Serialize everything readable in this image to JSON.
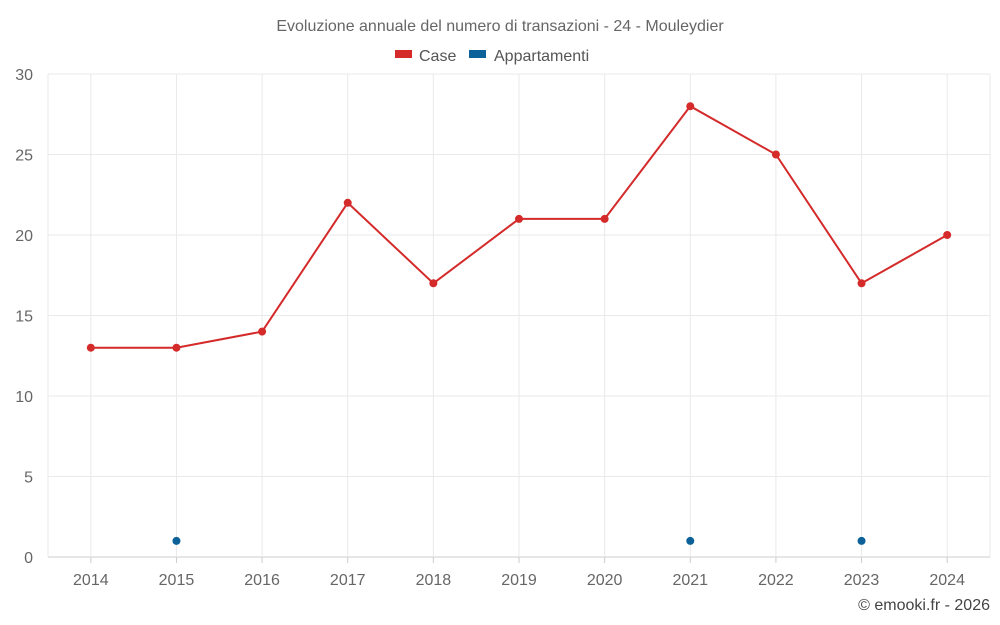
{
  "chart_data": {
    "type": "line",
    "title": "Evoluzione annuale del numero di transazioni - 24 - Mouleydier",
    "xlabel": "",
    "ylabel": "",
    "categories": [
      "2014",
      "2015",
      "2016",
      "2017",
      "2018",
      "2019",
      "2020",
      "2021",
      "2022",
      "2023",
      "2024"
    ],
    "ylim": [
      0,
      30
    ],
    "yticks": [
      0,
      5,
      10,
      15,
      20,
      25,
      30
    ],
    "grid": true,
    "legend_position": "top-center",
    "series": [
      {
        "name": "Case",
        "color": "#d42a2a",
        "values": [
          13,
          13,
          14,
          22,
          17,
          21,
          21,
          28,
          25,
          17,
          20
        ],
        "line": true
      },
      {
        "name": "Appartamenti",
        "color": "#0c6198",
        "values": [
          null,
          1,
          null,
          null,
          null,
          null,
          null,
          1,
          null,
          1,
          null
        ],
        "line": false
      }
    ]
  },
  "credit": "© emooki.fr - 2026"
}
